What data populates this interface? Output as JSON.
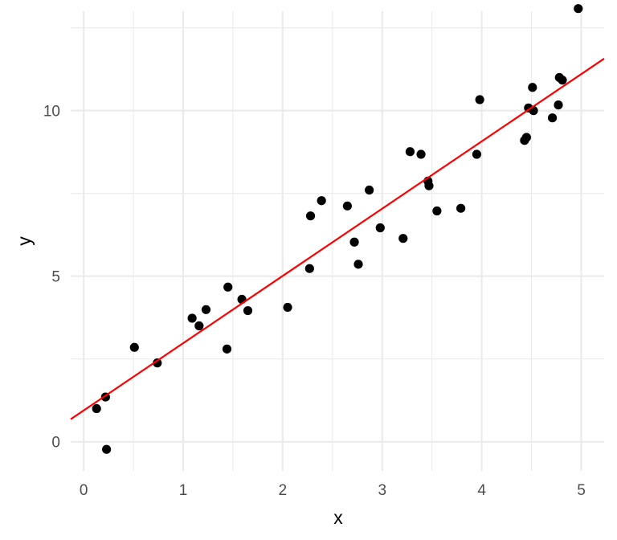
{
  "chart_data": {
    "type": "scatter",
    "title": "",
    "xlabel": "x",
    "ylabel": "y",
    "xlim": [
      -0.13,
      5.23
    ],
    "ylim": [
      -0.88,
      13.0
    ],
    "x_ticks": [
      0,
      1,
      2,
      3,
      4,
      5
    ],
    "y_ticks": [
      0,
      5,
      10
    ],
    "x_tick_labels": [
      "0",
      "1",
      "2",
      "3",
      "4",
      "5"
    ],
    "y_tick_labels": [
      "0",
      "5",
      "10"
    ],
    "grid": true,
    "legend": "none",
    "point_color": "#000000",
    "line_color": "#ff0000",
    "grid_color": "#ebebeb",
    "series": [
      {
        "kind": "points",
        "x": [
          0.13,
          0.22,
          0.23,
          0.51,
          0.74,
          1.09,
          1.16,
          1.23,
          1.44,
          1.45,
          1.59,
          1.65,
          2.05,
          2.27,
          2.28,
          2.39,
          2.65,
          2.72,
          2.76,
          2.87,
          2.98,
          3.21,
          3.28,
          3.39,
          3.46,
          3.47,
          3.55,
          3.79,
          3.95,
          3.98,
          4.43,
          4.45,
          4.47,
          4.51,
          4.52,
          4.71,
          4.77,
          4.78,
          4.81,
          4.97
        ],
        "y": [
          1.0,
          1.35,
          -0.23,
          2.85,
          2.38,
          3.73,
          3.5,
          3.99,
          2.8,
          4.67,
          4.3,
          3.96,
          4.06,
          5.23,
          6.82,
          7.28,
          7.12,
          6.03,
          5.36,
          7.6,
          6.46,
          6.14,
          8.76,
          8.68,
          7.87,
          7.73,
          6.97,
          7.05,
          8.68,
          10.33,
          9.1,
          9.19,
          10.08,
          10.7,
          10.0,
          9.78,
          10.17,
          11.0,
          10.92,
          13.08
        ]
      },
      {
        "kind": "line",
        "x": [
          -0.13,
          5.23
        ],
        "y": [
          0.68,
          11.57
        ]
      }
    ]
  }
}
